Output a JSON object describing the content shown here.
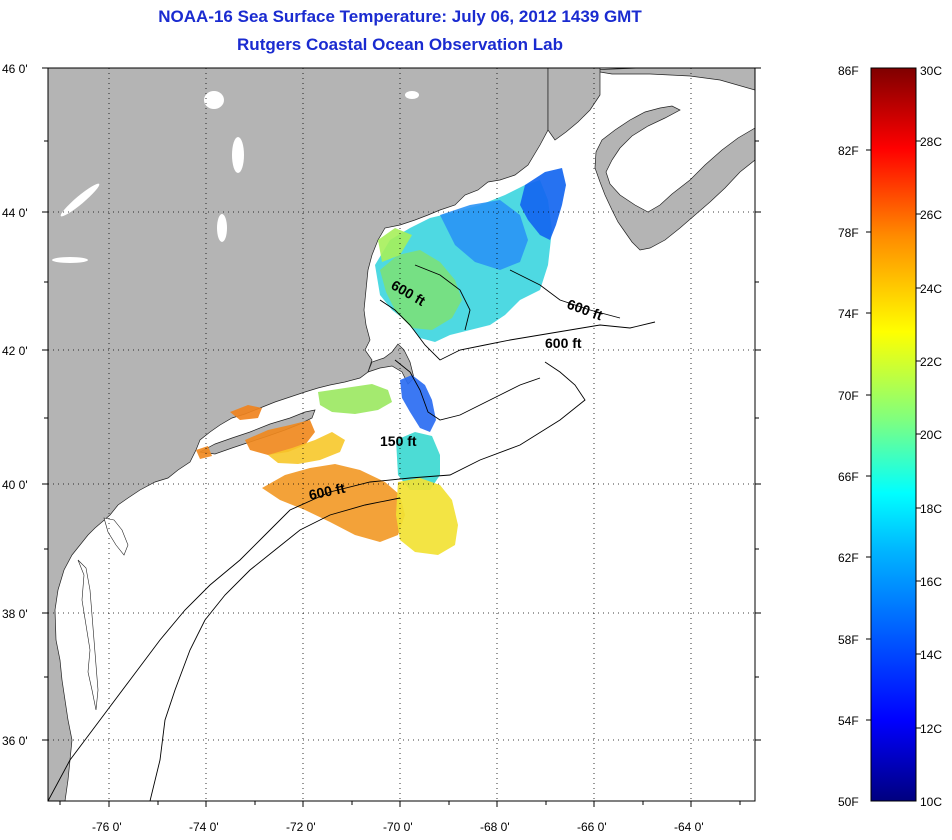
{
  "title": "NOAA-16 Sea Surface Temperature:  July 06, 2012 1439 GMT",
  "subtitle": "Rutgers Coastal Ocean Observation Lab",
  "map": {
    "lat_ticks": [
      "46 0'",
      "44 0'",
      "42 0'",
      "40 0'",
      "38 0'",
      "36 0'"
    ],
    "lon_ticks": [
      "-76 0'",
      "-74 0'",
      "-72 0'",
      "-70 0'",
      "-68 0'",
      "-66 0'",
      "-64 0'"
    ],
    "contour_labels": [
      "600 ft",
      "600 ft",
      "600 ft",
      "150 ft",
      "600 ft"
    ],
    "land_color": "#b4b4b4",
    "ocean_color": "#ffffff"
  },
  "colorbar": {
    "f_labels": [
      "86F",
      "82F",
      "78F",
      "74F",
      "70F",
      "66F",
      "62F",
      "58F",
      "54F",
      "50F"
    ],
    "c_labels": [
      "30C",
      "28C",
      "26C",
      "24C",
      "22C",
      "20C",
      "18C",
      "16C",
      "14C",
      "12C",
      "10C"
    ],
    "colors": [
      "#00007f",
      "#0000ff",
      "#007fff",
      "#00ffff",
      "#7fff7f",
      "#ffff00",
      "#ff7f00",
      "#ff0000",
      "#7f0000"
    ]
  }
}
